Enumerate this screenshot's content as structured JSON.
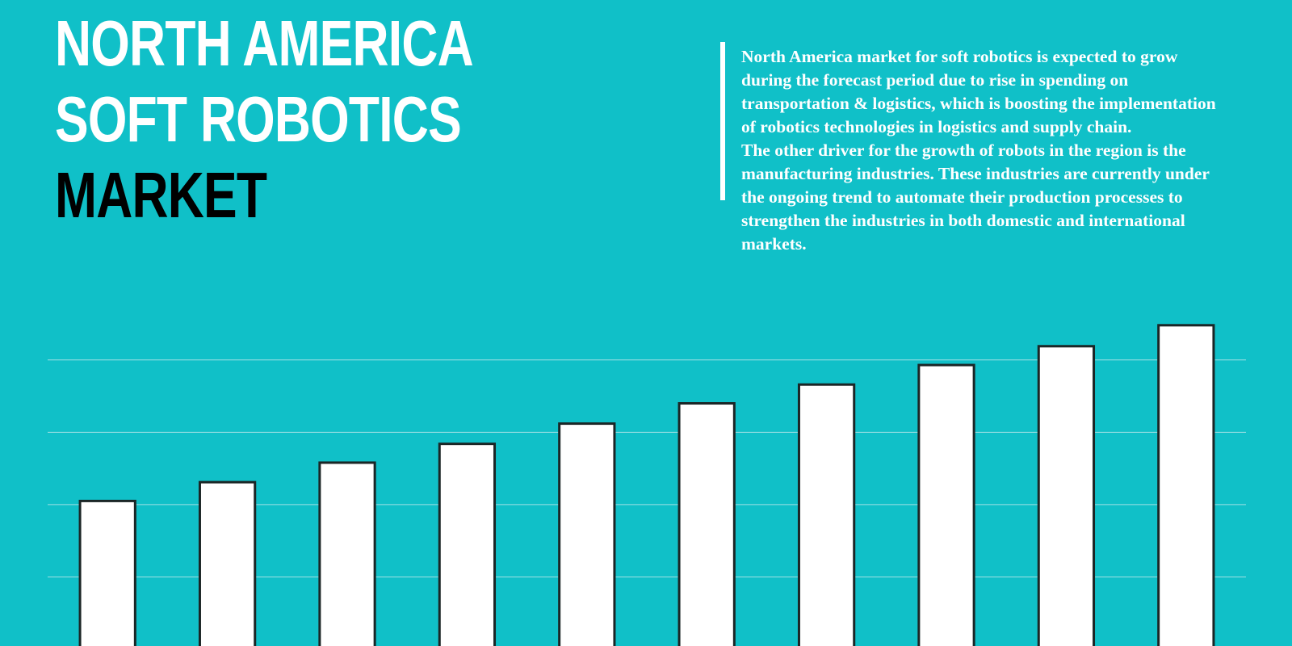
{
  "title": {
    "line1": "NORTH AMERICA",
    "line2": "SOFT ROBOTICS",
    "line3": "MARKET"
  },
  "description": [
    "North America market for soft robotics is expected to grow during the forecast period due to rise in spending on transportation & logistics, which is boosting the implementation of robotics technologies in logistics and supply chain.",
    "The other driver for the growth of robots in the region is the manufacturing industries. These industries are currently under the ongoing trend to automate their production processes to strengthen the industries in both domestic and international markets."
  ],
  "chart_data": {
    "type": "bar",
    "categories": [
      null,
      null,
      null,
      null,
      null,
      null,
      null,
      null,
      null,
      null
    ],
    "values": [
      2.05,
      2.31,
      2.58,
      2.84,
      3.12,
      3.4,
      3.66,
      3.93,
      4.19,
      4.48
    ],
    "color": "#ffffff",
    "ylim": [
      0,
      4.5
    ],
    "yticks": [
      1,
      2,
      3,
      4
    ],
    "grid": true
  }
}
